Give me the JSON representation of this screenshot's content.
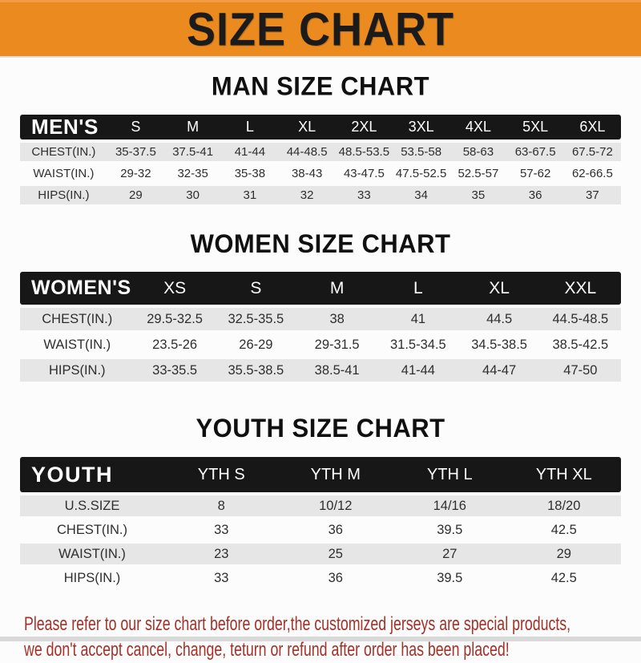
{
  "banner": {
    "title": "SIZE CHART",
    "bg_color": "#EA8A1F",
    "text_color": "#1B1B1B"
  },
  "sections": [
    {
      "heading": "MAN SIZE CHART",
      "table_label": "MEN'S",
      "columns": [
        "S",
        "M",
        "L",
        "XL",
        "2XL",
        "3XL",
        "4XL",
        "5XL",
        "6XL"
      ],
      "rows": [
        {
          "label": "CHEST(IN.)",
          "values": [
            "35-37.5",
            "37.5-41",
            "41-44",
            "44-48.5",
            "48.5-53.5",
            "53.5-58",
            "58-63",
            "63-67.5",
            "67.5-72"
          ]
        },
        {
          "label": "WAIST(IN.)",
          "values": [
            "29-32",
            "32-35",
            "35-38",
            "38-43",
            "43-47.5",
            "47.5-52.5",
            "52.5-57",
            "57-62",
            "62-66.5"
          ]
        },
        {
          "label": "HIPS(IN.)",
          "values": [
            "29",
            "30",
            "31",
            "32",
            "33",
            "34",
            "35",
            "36",
            "37"
          ]
        }
      ]
    },
    {
      "heading": "WOMEN SIZE CHART",
      "table_label": "WOMEN'S",
      "columns": [
        "XS",
        "S",
        "M",
        "L",
        "XL",
        "XXL"
      ],
      "rows": [
        {
          "label": "CHEST(IN.)",
          "values": [
            "29.5-32.5",
            "32.5-35.5",
            "38",
            "41",
            "44.5",
            "44.5-48.5"
          ]
        },
        {
          "label": "WAIST(IN.)",
          "values": [
            "23.5-26",
            "26-29",
            "29-31.5",
            "31.5-34.5",
            "34.5-38.5",
            "38.5-42.5"
          ]
        },
        {
          "label": "HIPS(IN.)",
          "values": [
            "33-35.5",
            "35.5-38.5",
            "38.5-41",
            "41-44",
            "44-47",
            "47-50"
          ]
        }
      ]
    },
    {
      "heading": "YOUTH SIZE CHART",
      "table_label": "YOUTH",
      "columns": [
        "YTH S",
        "YTH M",
        "YTH L",
        "YTH XL"
      ],
      "rows": [
        {
          "label": "U.S.SIZE",
          "values": [
            "8",
            "10/12",
            "14/16",
            "18/20"
          ]
        },
        {
          "label": "CHEST(IN.)",
          "values": [
            "33",
            "36",
            "39.5",
            "42.5"
          ]
        },
        {
          "label": "WAIST(IN.)",
          "values": [
            "23",
            "25",
            "27",
            "29"
          ]
        },
        {
          "label": "HIPS(IN.)",
          "values": [
            "33",
            "36",
            "39.5",
            "42.5"
          ]
        }
      ]
    }
  ],
  "footer": {
    "line1": "Please refer to our size chart before order,the customized jerseys are special products,",
    "line2": "we don't accept cancel, change, teturn or refund after order has been placed!",
    "text_color": "#A53129"
  },
  "chart_data": [
    {
      "type": "table",
      "title": "MAN SIZE CHART",
      "columns": [
        "MEN'S",
        "S",
        "M",
        "L",
        "XL",
        "2XL",
        "3XL",
        "4XL",
        "5XL",
        "6XL"
      ],
      "rows": [
        [
          "CHEST(IN.)",
          "35-37.5",
          "37.5-41",
          "41-44",
          "44-48.5",
          "48.5-53.5",
          "53.5-58",
          "58-63",
          "63-67.5",
          "67.5-72"
        ],
        [
          "WAIST(IN.)",
          "29-32",
          "32-35",
          "35-38",
          "38-43",
          "43-47.5",
          "47.5-52.5",
          "52.5-57",
          "57-62",
          "62-66.5"
        ],
        [
          "HIPS(IN.)",
          "29",
          "30",
          "31",
          "32",
          "33",
          "34",
          "35",
          "36",
          "37"
        ]
      ]
    },
    {
      "type": "table",
      "title": "WOMEN SIZE CHART",
      "columns": [
        "WOMEN'S",
        "XS",
        "S",
        "M",
        "L",
        "XL",
        "XXL"
      ],
      "rows": [
        [
          "CHEST(IN.)",
          "29.5-32.5",
          "32.5-35.5",
          "38",
          "41",
          "44.5",
          "44.5-48.5"
        ],
        [
          "WAIST(IN.)",
          "23.5-26",
          "26-29",
          "29-31.5",
          "31.5-34.5",
          "34.5-38.5",
          "38.5-42.5"
        ],
        [
          "HIPS(IN.)",
          "33-35.5",
          "35.5-38.5",
          "38.5-41",
          "41-44",
          "44-47",
          "47-50"
        ]
      ]
    },
    {
      "type": "table",
      "title": "YOUTH SIZE CHART",
      "columns": [
        "YOUTH",
        "YTH S",
        "YTH M",
        "YTH L",
        "YTH XL"
      ],
      "rows": [
        [
          "U.S.SIZE",
          "8",
          "10/12",
          "14/16",
          "18/20"
        ],
        [
          "CHEST(IN.)",
          "33",
          "36",
          "39.5",
          "42.5"
        ],
        [
          "WAIST(IN.)",
          "23",
          "25",
          "27",
          "29"
        ],
        [
          "HIPS(IN.)",
          "33",
          "36",
          "39.5",
          "42.5"
        ]
      ]
    }
  ]
}
